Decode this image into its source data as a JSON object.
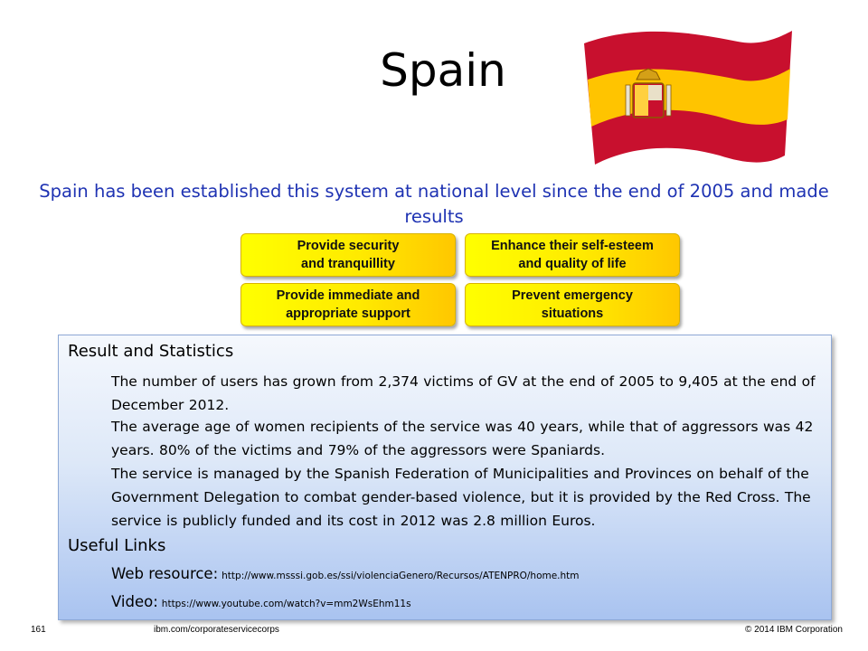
{
  "slide": {
    "title": "Spain",
    "subtitle": "Spain has been established this system at national level since the end of 2005 and made results"
  },
  "goals": [
    "Provide security\nand tranquillity",
    "Enhance their self-esteem\nand quality of life",
    "Provide immediate and\nappropriate support",
    "Prevent emergency\nsituations"
  ],
  "results": {
    "heading": "Result and Statistics",
    "paragraphs": [
      "The number of users has grown from 2,374 victims of GV at the end of 2005 to 9,405 at the end of December 2012.",
      "The average age of women recipients of the service was 40 years, while that of aggressors was 42 years. 80% of the victims and 79% of the aggressors were Spaniards.",
      "The service is managed by the Spanish Federation of Municipalities and Provinces on behalf of the Government Delegation to combat gender-based violence, but it is provided by the Red Cross. The service is publicly funded and its cost in 2012 was 2.8 million Euros."
    ]
  },
  "links": {
    "heading": "Useful Links",
    "web_label": "Web resource:",
    "web_url": "http://www.msssi.gob.es/ssi/violenciaGenero/Recursos/ATENPRO/home.htm",
    "video_label": "Video:",
    "video_url": "https://www.youtube.com/watch?v=mm2WsEhm11s"
  },
  "footer": {
    "page_number": "161",
    "site": "ibm.com/corporateservicecorps",
    "copyright": "© 2014 IBM Corporation"
  },
  "colors": {
    "flag_red": "#c8102e",
    "flag_yellow": "#ffc400",
    "subtitle_blue": "#1f33b3",
    "goal_yellow": "#ffea00"
  }
}
